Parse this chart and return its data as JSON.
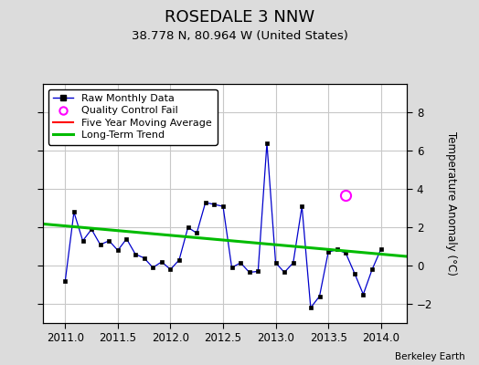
{
  "title": "ROSEDALE 3 NNW",
  "subtitle": "38.778 N, 80.964 W (United States)",
  "ylabel": "Temperature Anomaly (°C)",
  "credit": "Berkeley Earth",
  "xlim": [
    2010.79,
    2014.25
  ],
  "ylim": [
    -3.0,
    9.5
  ],
  "yticks": [
    -2,
    0,
    2,
    4,
    6,
    8
  ],
  "xticks": [
    2011,
    2011.5,
    2012,
    2012.5,
    2013,
    2013.5,
    2014
  ],
  "background_color": "#dcdcdc",
  "plot_background": "#ffffff",
  "raw_x": [
    2011.0,
    2011.083,
    2011.167,
    2011.25,
    2011.333,
    2011.417,
    2011.5,
    2011.583,
    2011.667,
    2011.75,
    2011.833,
    2011.917,
    2012.0,
    2012.083,
    2012.167,
    2012.25,
    2012.333,
    2012.417,
    2012.5,
    2012.583,
    2012.667,
    2012.75,
    2012.833,
    2012.917,
    2013.0,
    2013.083,
    2013.167,
    2013.25,
    2013.333,
    2013.417,
    2013.5,
    2013.583,
    2013.667,
    2013.75,
    2013.833,
    2013.917,
    2014.0
  ],
  "raw_y": [
    -0.8,
    2.8,
    1.3,
    1.9,
    1.1,
    1.3,
    0.8,
    1.4,
    0.6,
    0.4,
    -0.1,
    0.2,
    -0.2,
    0.3,
    2.0,
    1.7,
    3.3,
    3.2,
    3.1,
    -0.1,
    0.15,
    -0.35,
    -0.3,
    6.4,
    0.15,
    -0.35,
    0.15,
    3.1,
    -2.2,
    -1.6,
    0.7,
    0.85,
    0.65,
    -0.4,
    -1.5,
    -0.2,
    0.85
  ],
  "qc_fail_x": [
    2013.667
  ],
  "qc_fail_y": [
    3.7
  ],
  "isolated_x": [
    2013.917
  ],
  "isolated_y": [
    0.85
  ],
  "trend_x": [
    2010.79,
    2014.25
  ],
  "trend_y": [
    2.18,
    0.48
  ],
  "raw_color": "#0000cc",
  "raw_marker_color": "#000000",
  "qc_color": "#ff00ff",
  "trend_color": "#00bb00",
  "moving_avg_color": "#ff0000",
  "grid_color": "#c8c8c8",
  "title_fontsize": 13,
  "subtitle_fontsize": 9.5,
  "ylabel_fontsize": 8.5,
  "tick_fontsize": 8.5,
  "legend_fontsize": 8
}
